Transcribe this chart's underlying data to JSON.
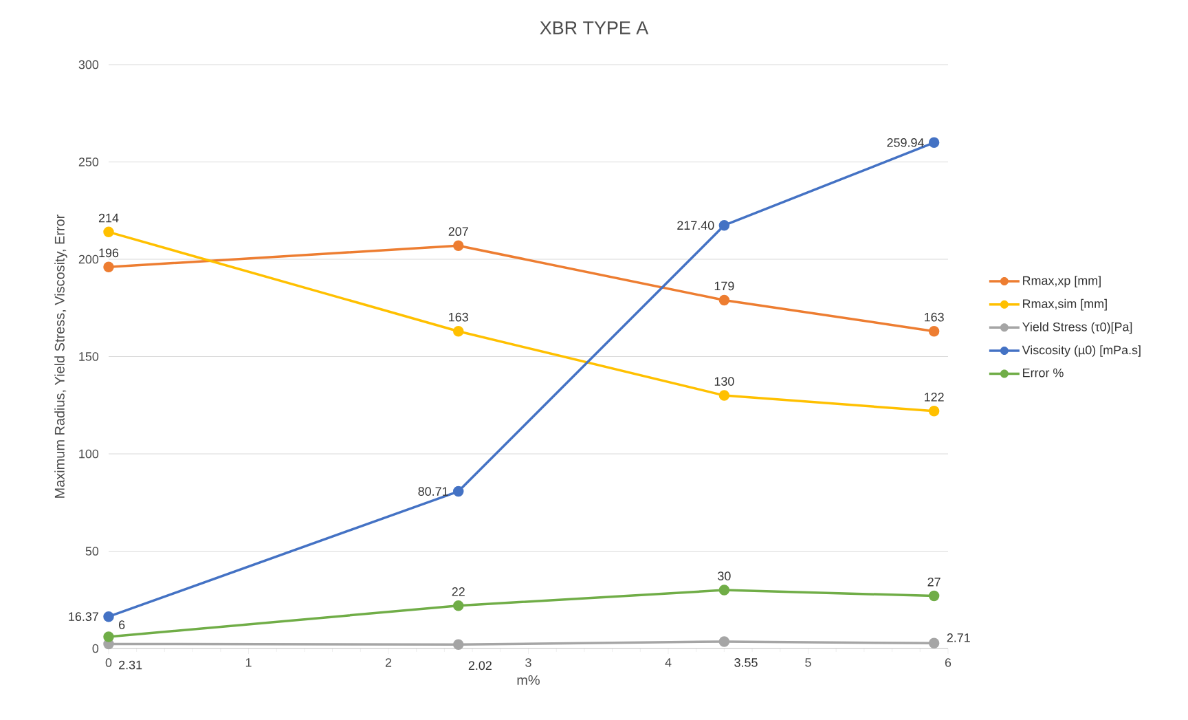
{
  "chart_data": {
    "type": "line",
    "title": "XBR TYPE A",
    "xlabel": "m%",
    "ylabel": "Maximum Radius, Yield Stress, Viscosity, Error",
    "x": [
      0,
      2.5,
      4.4,
      5.9
    ],
    "series": [
      {
        "name": "Rmax,xp [mm]",
        "color": "#ed7d31",
        "values": [
          196,
          207,
          179,
          163
        ],
        "value_labels": [
          "196",
          "207",
          "179",
          "163"
        ]
      },
      {
        "name": "Rmax,sim [mm]",
        "color": "#ffc000",
        "values": [
          214,
          163,
          130,
          122
        ],
        "value_labels": [
          "214",
          "163",
          "130",
          "122"
        ]
      },
      {
        "name": "Yield Stress (τ0)[Pa]",
        "color": "#a5a5a5",
        "values": [
          2.31,
          2.02,
          3.55,
          2.71
        ],
        "value_labels": [
          "2.31",
          "2.02",
          "3.55",
          "2.71"
        ]
      },
      {
        "name": "Viscosity (µ0) [mPa.s]",
        "color": "#4472c4",
        "values": [
          16.37,
          80.71,
          217.4,
          259.94
        ],
        "value_labels": [
          "16.37",
          "80.71",
          "217.40",
          "259.94"
        ]
      },
      {
        "name": "Error %",
        "color": "#70ad47",
        "values": [
          6,
          22,
          30,
          27
        ],
        "value_labels": [
          "6",
          "22",
          "30",
          "27"
        ]
      }
    ],
    "xlim": [
      0,
      6
    ],
    "xticks": [
      0,
      1,
      2,
      3,
      4,
      5,
      6
    ],
    "ylim": [
      0,
      300
    ],
    "yticks": [
      0,
      50,
      100,
      150,
      200,
      250,
      300
    ],
    "grid": "y",
    "legend": "right",
    "marker": "circle",
    "line_style": "solid"
  }
}
